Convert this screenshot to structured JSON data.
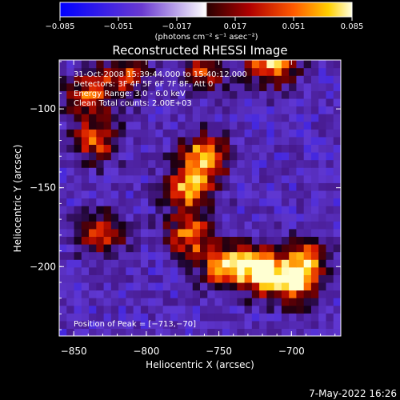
{
  "chart_data": {
    "type": "heatmap",
    "title": "Reconstructed RHESSI Image",
    "xlabel": "Heliocentric X (arcsec)",
    "ylabel": "Heliocentric Y (arcsec)",
    "xlim": [
      -860,
      -666
    ],
    "ylim": [
      -244,
      -69
    ],
    "xticks": [
      -850,
      -800,
      -750,
      -700
    ],
    "xtick_labels": [
      "−850",
      "−800",
      "−750",
      "−700"
    ],
    "yticks": [
      -100,
      -150,
      -200
    ],
    "ytick_labels": [
      "−100",
      "−150",
      "−200"
    ],
    "colorbar": {
      "min": -0.085,
      "max": 0.085,
      "ticks": [
        -0.085,
        -0.051,
        -0.017,
        0.017,
        0.051,
        0.085
      ],
      "tick_labels": [
        "−0.085",
        "−0.051",
        "−0.017",
        "0.017",
        "0.051",
        "0.085"
      ],
      "units_label": "(photons cm⁻² s⁻¹ asec⁻²)"
    },
    "annotations": [
      "31-Oct-2008 15:39:44.000 to 15:40:12.000",
      "Detectors: 3F 4F 5F 6F 7F 8F, Att 0",
      "Energy Range: 3.0 - 6.0 keV",
      "Clean      Total counts: 2.00E+03"
    ],
    "peak_label": "Position of Peak = [−713,−70]",
    "peak_position": [
      -713,
      -70
    ],
    "features": [
      {
        "x": -760,
        "y": -130,
        "value": 0.075
      },
      {
        "x": -770,
        "y": -150,
        "value": 0.07
      },
      {
        "x": -770,
        "y": -180,
        "value": 0.06
      },
      {
        "x": -745,
        "y": -200,
        "value": 0.07
      },
      {
        "x": -700,
        "y": -210,
        "value": 0.065
      },
      {
        "x": -722,
        "y": -202,
        "value": 0.08
      },
      {
        "x": -690,
        "y": -195,
        "value": 0.05
      },
      {
        "x": -835,
        "y": -120,
        "value": 0.05
      },
      {
        "x": -830,
        "y": -180,
        "value": 0.045
      },
      {
        "x": -840,
        "y": -90,
        "value": 0.045
      },
      {
        "x": -815,
        "y": -78,
        "value": 0.04
      },
      {
        "x": -760,
        "y": -75,
        "value": 0.035
      },
      {
        "x": -713,
        "y": -70,
        "value": 0.085
      }
    ]
  },
  "footer": {
    "date_label": "7-May-2022 16:26"
  },
  "colors": {
    "background": "#000000",
    "text": "#ffffff"
  }
}
